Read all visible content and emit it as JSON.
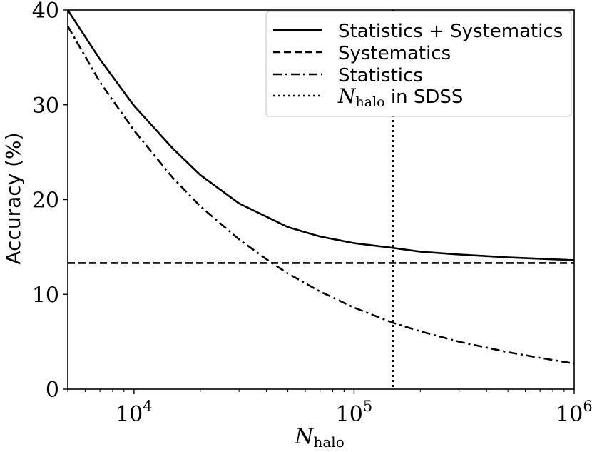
{
  "chart_data": {
    "type": "line",
    "xlabel": "N_halo",
    "ylabel": "Accuracy (%)",
    "xscale": "log",
    "xlim": [
      5000,
      1000000
    ],
    "ylim": [
      0,
      40
    ],
    "x_tick_labels": [
      {
        "value": 10000,
        "base": "10",
        "exp": "4"
      },
      {
        "value": 100000,
        "base": "10",
        "exp": "5"
      },
      {
        "value": 1000000,
        "base": "10",
        "exp": "6"
      }
    ],
    "y_ticks": [
      0,
      10,
      20,
      30,
      40
    ],
    "y_tick_labels": [
      "0",
      "10",
      "20",
      "30",
      "40"
    ],
    "legend_position": "top-right",
    "series": [
      {
        "name": "Statistics + Systematics",
        "style": "solid",
        "x": [
          5000,
          7000,
          10000,
          15000,
          20000,
          30000,
          50000,
          70000,
          100000,
          150000,
          200000,
          300000,
          500000,
          700000,
          1000000
        ],
        "y": [
          40.0,
          34.8,
          29.9,
          25.4,
          22.6,
          19.6,
          17.1,
          16.1,
          15.4,
          14.9,
          14.5,
          14.2,
          13.9,
          13.75,
          13.6
        ]
      },
      {
        "name": "Systematics",
        "style": "dashed",
        "x": [
          5000,
          1000000
        ],
        "y": [
          13.3,
          13.3
        ]
      },
      {
        "name": "Statistics",
        "style": "dashdot",
        "x": [
          5000,
          7000,
          10000,
          15000,
          20000,
          30000,
          40000,
          50000,
          70000,
          100000,
          150000,
          200000,
          300000,
          500000,
          700000,
          1000000
        ],
        "y": [
          38.3,
          32.4,
          27.3,
          22.3,
          19.3,
          15.8,
          13.7,
          12.2,
          10.3,
          8.6,
          7.0,
          6.1,
          5.0,
          3.9,
          3.3,
          2.7
        ]
      },
      {
        "name": "N_halo in SDSS",
        "label_italic": "N",
        "label_sub": "halo",
        "label_rest": " in SDSS",
        "style": "dotted",
        "orientation": "vertical",
        "x_value": 150000
      }
    ]
  },
  "labels": {
    "ylabel": "Accuracy (%)",
    "xlabel_italic": "N",
    "xlabel_sub": "halo"
  }
}
